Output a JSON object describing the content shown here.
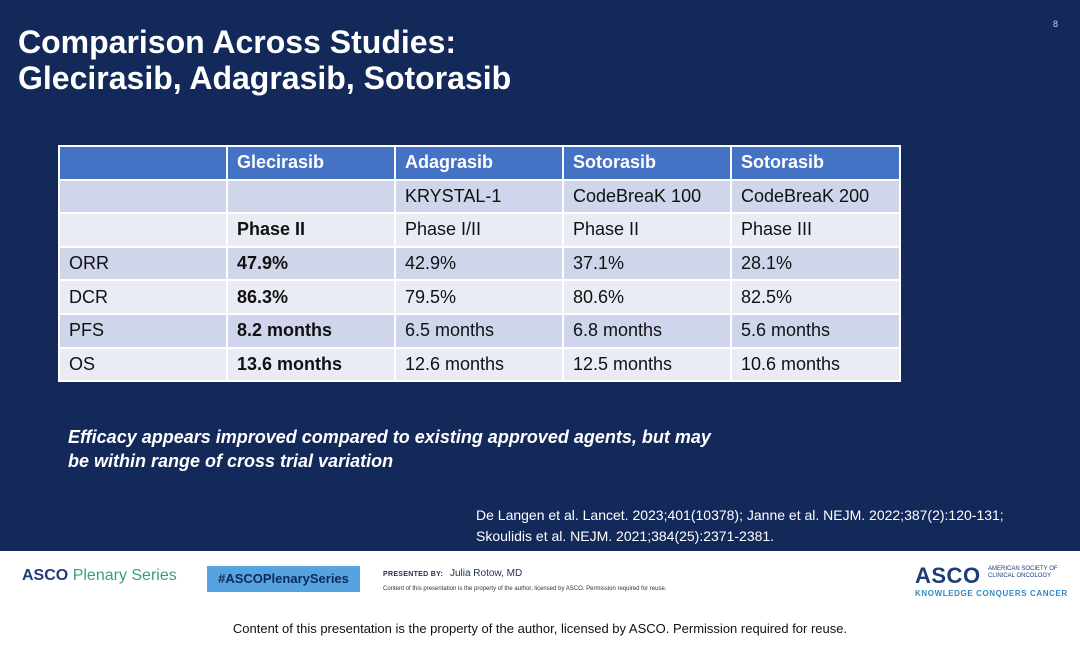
{
  "slide_number": "8",
  "title": {
    "line1": "Comparison Across Studies:",
    "line2": "Glecirasib, Adagrasib, Sotorasib"
  },
  "table": {
    "header": [
      "",
      "Glecirasib",
      "Adagrasib",
      "Sotorasib",
      "Sotorasib"
    ],
    "rows": [
      [
        "",
        "",
        "KRYSTAL-1",
        "CodeBreaK 100",
        "CodeBreaK 200"
      ],
      [
        "",
        "Phase II",
        "Phase I/II",
        "Phase II",
        "Phase III"
      ],
      [
        "ORR",
        "47.9%",
        "42.9%",
        "37.1%",
        "28.1%"
      ],
      [
        "DCR",
        "86.3%",
        "79.5%",
        "80.6%",
        "82.5%"
      ],
      [
        "PFS",
        "8.2 months",
        "6.5 months",
        "6.8 months",
        "5.6 months"
      ],
      [
        "OS",
        "13.6 months",
        "12.6 months",
        "12.5 months",
        "10.6 months"
      ]
    ]
  },
  "note": {
    "line1": "Efficacy appears improved compared to existing approved agents, but may",
    "line2": "be within range of cross trial variation"
  },
  "references": {
    "line1": "De Langen et al. Lancet. 2023;401(10378); Janne et al. NEJM. 2022;387(2):120-131;",
    "line2": "Skoulidis et al. NEJM. 2021;384(25):2371-2381."
  },
  "footer": {
    "asco_brand": "ASCO",
    "plenary_series": "Plenary Series",
    "hashtag": "#ASCOPlenarySeries",
    "presented_by_label": "PRESENTED BY:",
    "presenter": "Julia Rotow, MD",
    "small_notice": "Content of this presentation is the property of the author, licensed by ASCO. Permission required for reuse.",
    "asco_logo": "ASCO",
    "society": "American Society of Clinical Oncology",
    "tagline": "KNOWLEDGE CONQUERS CANCER"
  },
  "bottom_notice": "Content of this presentation is the property of the author, licensed by ASCO. Permission required for reuse."
}
